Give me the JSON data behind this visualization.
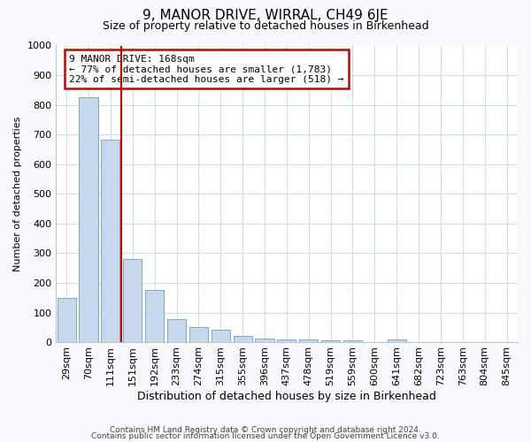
{
  "title": "9, MANOR DRIVE, WIRRAL, CH49 6JE",
  "subtitle": "Size of property relative to detached houses in Birkenhead",
  "xlabel": "Distribution of detached houses by size in Birkenhead",
  "ylabel": "Number of detached properties",
  "categories": [
    "29sqm",
    "70sqm",
    "111sqm",
    "151sqm",
    "192sqm",
    "233sqm",
    "274sqm",
    "315sqm",
    "355sqm",
    "396sqm",
    "437sqm",
    "478sqm",
    "519sqm",
    "559sqm",
    "600sqm",
    "641sqm",
    "682sqm",
    "723sqm",
    "763sqm",
    "804sqm",
    "845sqm"
  ],
  "values": [
    148,
    825,
    682,
    280,
    175,
    78,
    52,
    43,
    22,
    12,
    8,
    10,
    7,
    5,
    0,
    10,
    0,
    0,
    0,
    0,
    0
  ],
  "bar_color": "#c6d9ec",
  "bar_edge_color": "#7aaac8",
  "plot_bg_color": "#ffffff",
  "fig_bg_color": "#f7f9fc",
  "grid_color": "#d0dce8",
  "red_line_x": 2.5,
  "ylim": [
    0,
    1000
  ],
  "yticks": [
    0,
    100,
    200,
    300,
    400,
    500,
    600,
    700,
    800,
    900,
    1000
  ],
  "annotation_text": "9 MANOR DRIVE: 168sqm\n← 77% of detached houses are smaller (1,783)\n22% of semi-detached houses are larger (518) →",
  "annotation_box_facecolor": "#ffffff",
  "annotation_box_edgecolor": "#cc0000",
  "footer_line1": "Contains HM Land Registry data © Crown copyright and database right 2024.",
  "footer_line2": "Contains public sector information licensed under the Open Government Licence v3.0.",
  "title_fontsize": 11,
  "subtitle_fontsize": 9,
  "xlabel_fontsize": 9,
  "ylabel_fontsize": 8,
  "tick_fontsize": 8,
  "annotation_fontsize": 8,
  "footer_fontsize": 6.5
}
